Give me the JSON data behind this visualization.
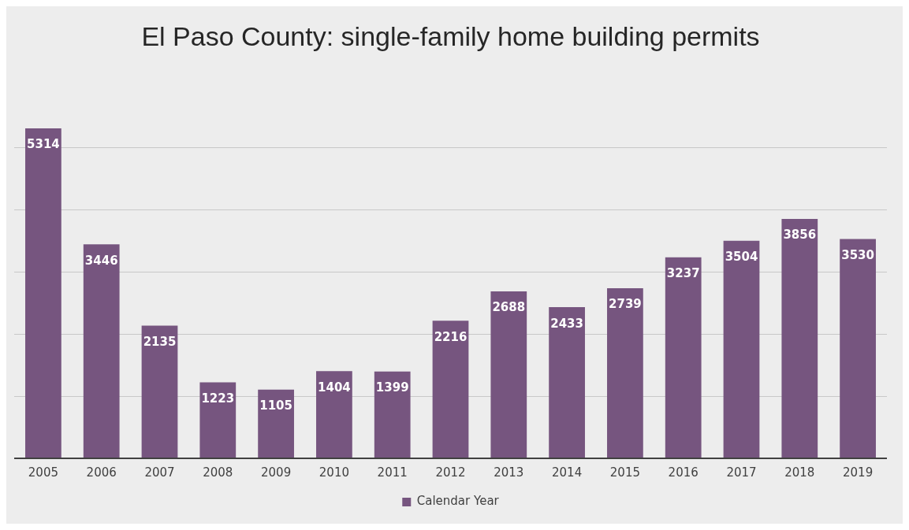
{
  "chart_data": {
    "type": "bar",
    "title": "El Paso County: single-family home building permits",
    "categories": [
      "2005",
      "2006",
      "2007",
      "2008",
      "2009",
      "2010",
      "2011",
      "2012",
      "2013",
      "2014",
      "2015",
      "2016",
      "2017",
      "2018",
      "2019"
    ],
    "series": [
      {
        "name": "Calendar Year",
        "color": "#76557f",
        "values": [
          5314,
          3446,
          2135,
          1223,
          1105,
          1404,
          1399,
          2216,
          2688,
          2433,
          2739,
          3237,
          3504,
          3856,
          3530
        ]
      }
    ],
    "yticks": [
      {
        "value": 0,
        "label": null
      },
      {
        "value": 1000,
        "label": null
      },
      {
        "value": 2000,
        "label": null
      },
      {
        "value": 3000,
        "label": null
      },
      {
        "value": 4000,
        "label": null
      },
      {
        "value": 5000,
        "label": null
      }
    ],
    "tick_labels": "x",
    "grid": "y",
    "legend": "bottom",
    "data_labels": true
  }
}
